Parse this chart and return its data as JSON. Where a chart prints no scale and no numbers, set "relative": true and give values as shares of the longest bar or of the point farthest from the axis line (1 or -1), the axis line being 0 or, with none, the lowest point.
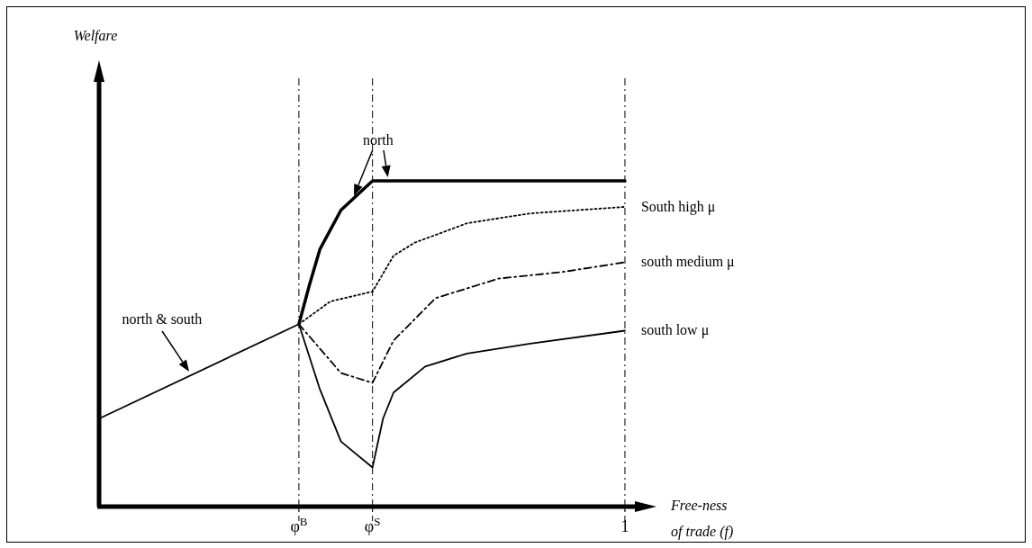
{
  "chart_data": {
    "type": "line",
    "relative": true,
    "annotations": [
      "Welfare"
    ],
    "xlabel": "Free-ness of trade (f)",
    "categories": [
      null,
      null,
      null,
      null,
      null,
      null,
      null,
      null,
      null,
      null,
      null,
      null,
      null,
      null,
      null,
      null,
      null,
      null,
      null,
      "φ$^{B}$",
      null,
      null,
      null,
      null,
      null,
      null,
      "φ$^{S}$",
      null,
      null,
      null,
      null,
      null,
      null,
      null,
      null,
      null,
      null,
      null,
      null,
      null,
      null,
      null,
      null,
      null,
      null,
      null,
      null,
      null,
      null,
      null,
      "1",
      null,
      null,
      null
    ],
    "ref_lines": [
      {
        "axis": "x",
        "value": "φ$^{B}$",
        "line_style": "dashed"
      },
      {
        "axis": "x",
        "value": "φ$^{S}$",
        "line_style": "dashed"
      },
      {
        "axis": "x",
        "value": "1",
        "line_style": "dashed"
      }
    ],
    "series": [
      {
        "name": "north & south",
        "color": "#000000",
        "line_style": "solid",
        "values": [
          0.27,
          null,
          null,
          null,
          null,
          null,
          null,
          null,
          null,
          null,
          null,
          null,
          null,
          null,
          null,
          null,
          null,
          null,
          null,
          0.56,
          null,
          null,
          null,
          null,
          null,
          null,
          null,
          null,
          null,
          null,
          null,
          null,
          null,
          null,
          null,
          null,
          null,
          null,
          null,
          null,
          null,
          null,
          null,
          null,
          null,
          null,
          null,
          null,
          null,
          null,
          null,
          null,
          null,
          null
        ]
      },
      {
        "name": "north",
        "color": "#000000",
        "line_style": "solid",
        "values": [
          null,
          null,
          null,
          null,
          null,
          null,
          null,
          null,
          null,
          null,
          null,
          null,
          null,
          null,
          null,
          null,
          null,
          null,
          null,
          0.56,
          0.68,
          0.79,
          null,
          0.91,
          null,
          null,
          1,
          null,
          null,
          null,
          null,
          null,
          null,
          null,
          null,
          null,
          null,
          null,
          null,
          null,
          null,
          null,
          null,
          null,
          null,
          null,
          null,
          null,
          null,
          null,
          1,
          null,
          null,
          null
        ]
      },
      {
        "name": "South high μ",
        "color": "#000000",
        "line_style": "dotted",
        "values": [
          null,
          null,
          null,
          null,
          null,
          null,
          null,
          null,
          null,
          null,
          null,
          null,
          null,
          null,
          null,
          null,
          null,
          null,
          null,
          0.56,
          null,
          null,
          0.63,
          null,
          null,
          null,
          0.66,
          null,
          0.77,
          null,
          0.81,
          null,
          null,
          null,
          null,
          0.87,
          null,
          null,
          null,
          null,
          null,
          0.9,
          null,
          null,
          null,
          null,
          null,
          null,
          null,
          null,
          0.92,
          null,
          null,
          null
        ]
      },
      {
        "name": "south medium μ",
        "color": "#000000",
        "line_style": "dashed",
        "values": [
          null,
          null,
          null,
          null,
          null,
          null,
          null,
          null,
          null,
          null,
          null,
          null,
          null,
          null,
          null,
          null,
          null,
          null,
          null,
          0.56,
          null,
          null,
          null,
          0.41,
          null,
          null,
          0.38,
          null,
          0.51,
          null,
          null,
          null,
          0.64,
          null,
          null,
          null,
          null,
          null,
          0.7,
          null,
          null,
          null,
          null,
          null,
          0.72,
          null,
          null,
          null,
          null,
          null,
          0.75,
          null,
          null,
          null
        ]
      },
      {
        "name": "south low μ",
        "color": "#000000",
        "line_style": "solid",
        "values": [
          null,
          null,
          null,
          null,
          null,
          null,
          null,
          null,
          null,
          null,
          null,
          null,
          null,
          null,
          null,
          null,
          null,
          null,
          null,
          0.56,
          null,
          0.36,
          null,
          0.2,
          null,
          null,
          0.12,
          0.27,
          0.35,
          null,
          null,
          0.43,
          null,
          null,
          null,
          0.47,
          null,
          null,
          null,
          null,
          null,
          0.5,
          null,
          null,
          null,
          null,
          null,
          null,
          null,
          null,
          0.54,
          null,
          null,
          null
        ]
      }
    ]
  }
}
